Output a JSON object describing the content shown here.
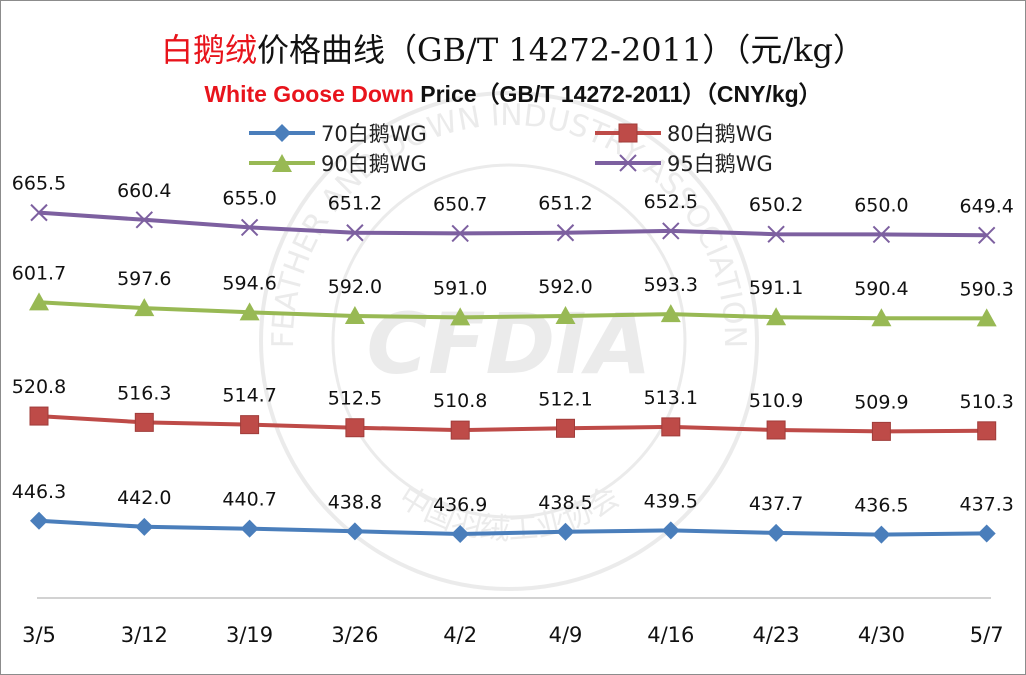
{
  "title": {
    "cn_highlight": "白鹅绒",
    "cn_rest": "价格曲线（GB/T 14272-2011）（元/kg）",
    "en_highlight": "White Goose Down",
    "en_rest": " Price（GB/T 14272-2011）（CNY/kg）"
  },
  "watermark": {
    "text_top": "FEATHER AND DOWN INDUSTRY ASSOCIATION",
    "text_bottom": "中国羽绒工业协会",
    "logo": "CFDIA"
  },
  "chart_data": {
    "type": "line",
    "categories": [
      "3/5",
      "3/12",
      "3/19",
      "3/26",
      "4/2",
      "4/9",
      "4/16",
      "4/23",
      "4/30",
      "5/7"
    ],
    "ylim": [
      380,
      690
    ],
    "grid": false,
    "legend": "top",
    "series": [
      {
        "name": "70白鹅WG",
        "color": "#4a7ebb",
        "marker": "diamond",
        "values": [
          446.3,
          442.0,
          440.7,
          438.8,
          436.9,
          438.5,
          439.5,
          437.7,
          436.5,
          437.3
        ],
        "labels": [
          "446.3",
          "442.0",
          "440.7",
          "438.8",
          "436.9",
          "438.5",
          "439.5",
          "437.7",
          "436.5",
          "437.3"
        ]
      },
      {
        "name": "80白鹅WG",
        "color": "#be4b48",
        "marker": "square",
        "values": [
          520.8,
          516.3,
          514.7,
          512.5,
          510.8,
          512.1,
          513.1,
          510.9,
          509.9,
          510.3
        ],
        "labels": [
          "520.8",
          "516.3",
          "514.7",
          "512.5",
          "510.8",
          "512.1",
          "513.1",
          "510.9",
          "509.9",
          "510.3"
        ]
      },
      {
        "name": "90白鹅WG",
        "color": "#98b954",
        "marker": "triangle",
        "values": [
          601.7,
          597.6,
          594.6,
          592.0,
          591.0,
          592.0,
          593.3,
          591.1,
          590.4,
          590.3
        ],
        "labels": [
          "601.7",
          "597.6",
          "594.6",
          "592.0",
          "591.0",
          "592.0",
          "593.3",
          "591.1",
          "590.4",
          "590.3"
        ]
      },
      {
        "name": "95白鹅WG",
        "color": "#7d60a0",
        "marker": "x",
        "values": [
          665.5,
          660.4,
          655.0,
          651.2,
          650.7,
          651.2,
          652.5,
          650.2,
          650.0,
          649.4
        ],
        "labels": [
          "665.5",
          "660.4",
          "655.0",
          "651.2",
          "650.7",
          "651.2",
          "652.5",
          "650.2",
          "650.0",
          "649.4"
        ]
      }
    ]
  }
}
